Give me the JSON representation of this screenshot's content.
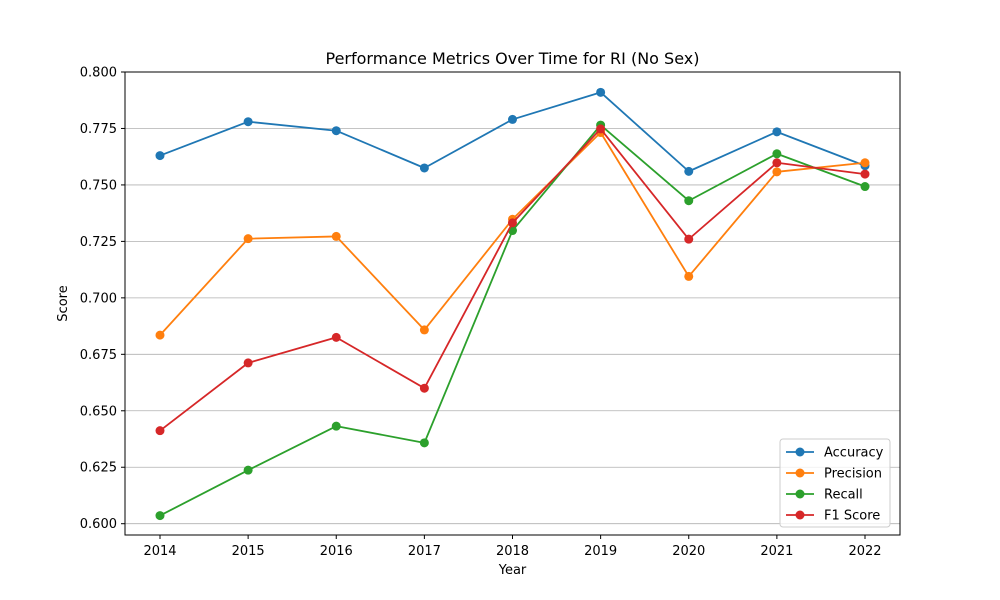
{
  "chart_data": {
    "type": "line",
    "title": "Performance Metrics Over Time for RI (No Sex)",
    "xlabel": "Year",
    "ylabel": "Score",
    "x": [
      "2014",
      "2015",
      "2016",
      "2017",
      "2018",
      "2019",
      "2020",
      "2021",
      "2022"
    ],
    "ylim": [
      0.595,
      0.8
    ],
    "yticks": [
      "0.600",
      "0.625",
      "0.650",
      "0.675",
      "0.700",
      "0.725",
      "0.750",
      "0.775",
      "0.800"
    ],
    "grid": "horizontal",
    "legend_position": "bottom-right",
    "series": [
      {
        "name": "Accuracy",
        "color": "#1f77b4",
        "values": [
          0.763,
          0.778,
          0.774,
          0.7575,
          0.779,
          0.791,
          0.756,
          0.7735,
          0.7585
        ]
      },
      {
        "name": "Precision",
        "color": "#ff7f0e",
        "values": [
          0.6835,
          0.7262,
          0.7272,
          0.6858,
          0.7348,
          0.7732,
          0.7095,
          0.7558,
          0.7598
        ]
      },
      {
        "name": "Recall",
        "color": "#2ca02c",
        "values": [
          0.6036,
          0.6237,
          0.6432,
          0.6358,
          0.7298,
          0.7765,
          0.743,
          0.7638,
          0.7493
        ]
      },
      {
        "name": "F1 Score",
        "color": "#d62728",
        "values": [
          0.6412,
          0.6712,
          0.6825,
          0.66,
          0.7332,
          0.7748,
          0.726,
          0.7598,
          0.7548
        ]
      }
    ]
  }
}
